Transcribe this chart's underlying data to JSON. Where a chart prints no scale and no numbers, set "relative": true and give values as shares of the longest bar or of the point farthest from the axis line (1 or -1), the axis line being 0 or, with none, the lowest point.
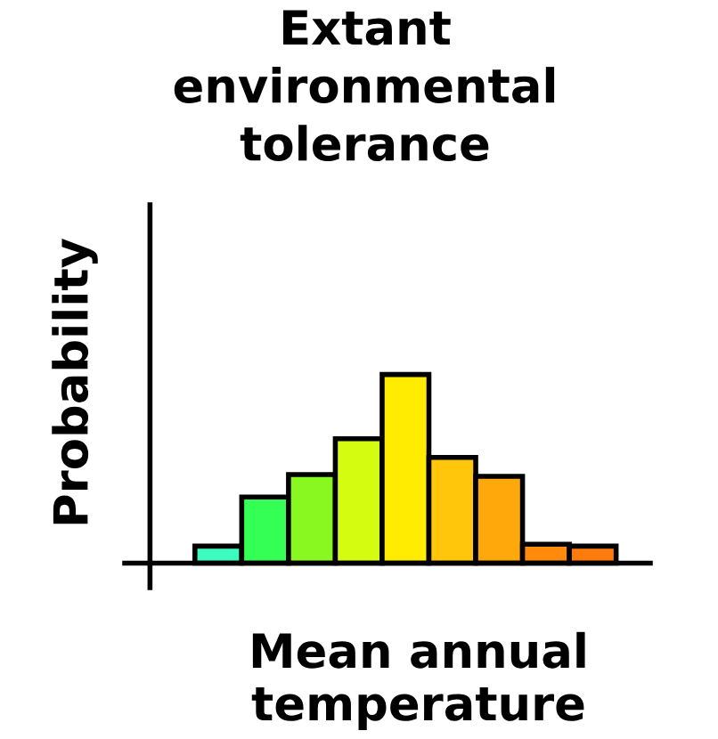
{
  "chart_data": {
    "type": "bar",
    "title": "Extant\nenvironmental\ntolerance",
    "xlabel": "Mean annual\ntemperature",
    "ylabel": "Probability",
    "relative": true,
    "categories": [
      null,
      null,
      null,
      null,
      null,
      null,
      null,
      null,
      null
    ],
    "values": [
      0.09,
      0.35,
      0.47,
      0.66,
      1,
      0.56,
      0.46,
      0.1,
      0.09
    ],
    "colors": [
      "#3dfcc0",
      "#33ff55",
      "#88f820",
      "#d4fc10",
      "#ffec00",
      "#ffc60c",
      "#ffa80c",
      "#ff8a0c",
      "#ff7c0c"
    ],
    "grid": false,
    "legend": false
  }
}
